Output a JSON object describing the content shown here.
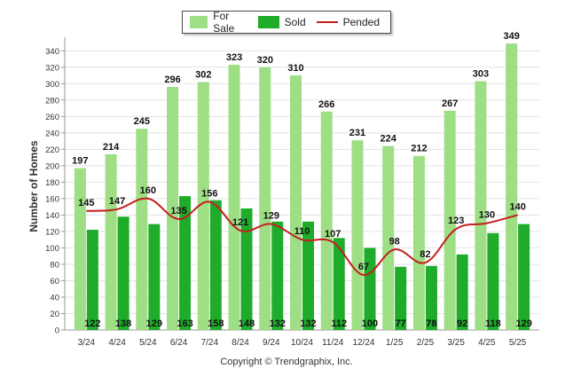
{
  "chart_data": {
    "type": "bar",
    "ylabel": "Number of Homes",
    "xlabel": "",
    "ylim": [
      0,
      350
    ],
    "yticks": [
      0,
      20,
      40,
      60,
      80,
      100,
      120,
      140,
      160,
      180,
      200,
      220,
      240,
      260,
      280,
      300,
      320,
      340
    ],
    "grid": true,
    "legend_position": "top-center",
    "categories": [
      "3/24",
      "4/24",
      "5/24",
      "6/24",
      "7/24",
      "8/24",
      "9/24",
      "10/24",
      "11/24",
      "12/24",
      "1/25",
      "2/25",
      "3/25",
      "4/25",
      "5/25"
    ],
    "series": [
      {
        "name": "For Sale",
        "type": "bar",
        "color": "#9ede84",
        "values": [
          197,
          214,
          245,
          296,
          302,
          323,
          320,
          310,
          266,
          231,
          224,
          212,
          267,
          303,
          349
        ]
      },
      {
        "name": "Sold",
        "type": "bar",
        "color": "#1fac2a",
        "values": [
          122,
          138,
          129,
          163,
          158,
          148,
          132,
          132,
          112,
          100,
          77,
          78,
          92,
          118,
          129
        ]
      },
      {
        "name": "Pended",
        "type": "line",
        "color": "#c31f1f",
        "values": [
          145,
          147,
          160,
          135,
          156,
          121,
          129,
          110,
          107,
          67,
          98,
          82,
          123,
          130,
          140
        ]
      }
    ]
  },
  "footer": {
    "copyright": "Copyright © Trendgraphix, Inc."
  }
}
